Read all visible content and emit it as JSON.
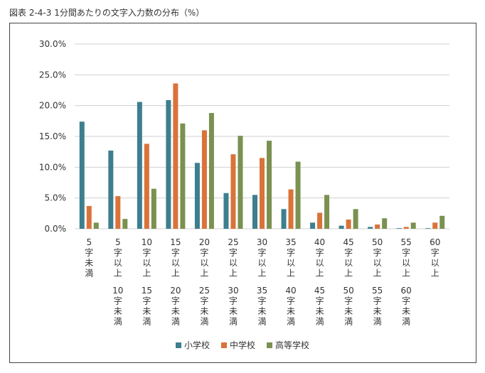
{
  "chart_data": {
    "type": "bar",
    "title": "図表 2-4-3 1分間あたりの文字入力数の分布（%）",
    "categories": [
      "5字未満",
      "5字以上10字未満",
      "10字以上15字未満",
      "15字以上20字未満",
      "20字以上25字未満",
      "25字以上30字未満",
      "30字以上35字未満",
      "35字以上40字未満",
      "40字以上45字未満",
      "45字以上50字未満",
      "50字以上55字未満",
      "55字以上60字未満",
      "60字以上"
    ],
    "series": [
      {
        "name": "小学校",
        "color": "#3d7f8e",
        "values": [
          17.4,
          12.7,
          20.6,
          20.9,
          10.7,
          5.8,
          5.5,
          3.2,
          1.0,
          0.5,
          0.3,
          0.1,
          0.1
        ]
      },
      {
        "name": "中学校",
        "color": "#d9733a",
        "values": [
          3.7,
          5.3,
          13.8,
          23.6,
          16.0,
          12.1,
          11.5,
          6.4,
          2.6,
          1.5,
          0.7,
          0.3,
          1.0
        ]
      },
      {
        "name": "高等学校",
        "color": "#7a9150",
        "values": [
          1.0,
          1.6,
          6.5,
          17.1,
          18.8,
          15.1,
          14.3,
          10.9,
          5.5,
          3.2,
          1.7,
          1.0,
          2.1
        ]
      }
    ],
    "yticks": [
      "0.0%",
      "5.0%",
      "10.0%",
      "15.0%",
      "20.0%",
      "25.0%",
      "30.0%"
    ],
    "ylim": [
      0,
      30
    ],
    "grid": true,
    "legend": "bottom"
  }
}
